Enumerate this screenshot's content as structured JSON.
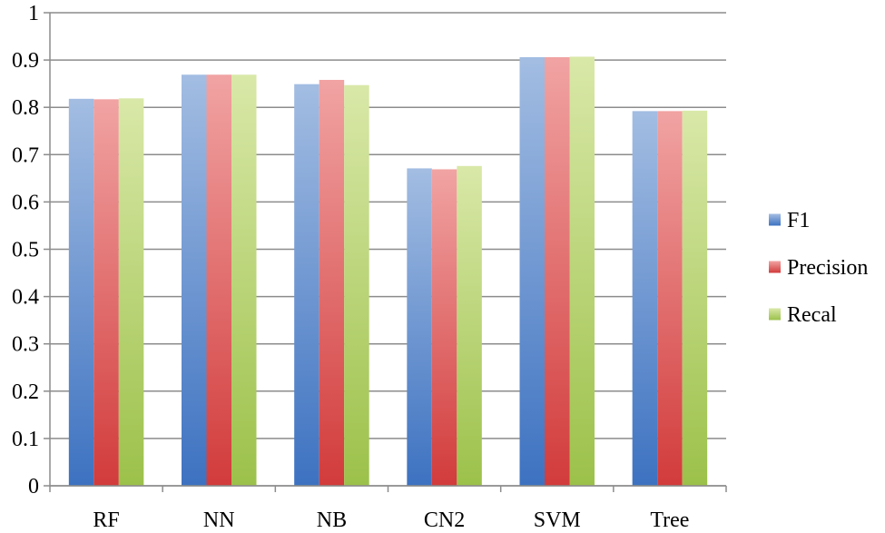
{
  "chart_data": {
    "type": "bar",
    "title": "",
    "xlabel": "",
    "ylabel": "",
    "categories": [
      "RF",
      "NN",
      "NB",
      "CN2",
      "SVM",
      "Tree"
    ],
    "series": [
      {
        "name": "F1",
        "color_top": "#a3bde2",
        "color_bottom": "#3d72c1",
        "values": [
          0.818,
          0.869,
          0.849,
          0.671,
          0.906,
          0.792
        ]
      },
      {
        "name": "Precision",
        "color_top": "#f1a3a3",
        "color_bottom": "#d23b3b",
        "values": [
          0.817,
          0.869,
          0.858,
          0.669,
          0.906,
          0.792
        ]
      },
      {
        "name": "Recal",
        "color_top": "#d9e8a8",
        "color_bottom": "#9cc14a",
        "values": [
          0.819,
          0.869,
          0.847,
          0.676,
          0.907,
          0.793
        ]
      }
    ],
    "yticks": [
      "0",
      "0.1",
      "0.2",
      "0.3",
      "0.4",
      "0.5",
      "0.6",
      "0.7",
      "0.8",
      "0.9",
      "1"
    ],
    "ylim": [
      0,
      1
    ],
    "grid": true,
    "legend_position": "right"
  }
}
